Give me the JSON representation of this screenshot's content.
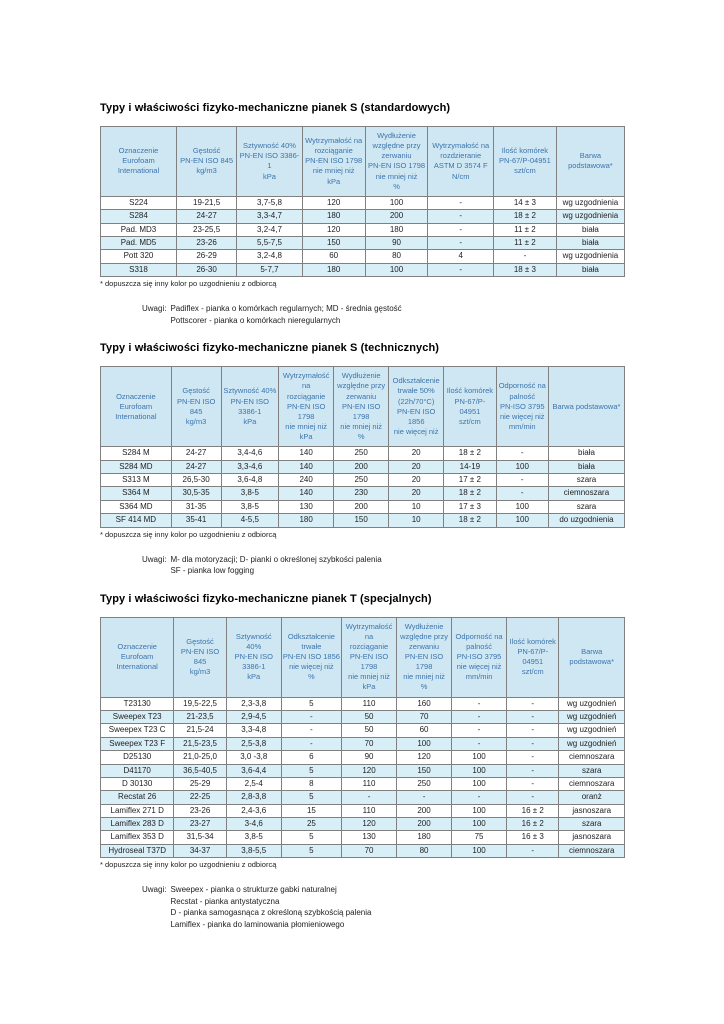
{
  "colors": {
    "header_bg": "#cfe7f2",
    "header_text": "#3c74ad",
    "zebra_bg": "#d9eff8",
    "cell_text": "#222222",
    "border": "#808080"
  },
  "sections": [
    {
      "title": "Typy i właściwości  fizyko-mechaniczne pianek S (standardowych)",
      "table": {
        "headers": [
          "Oznaczenie\nEurofoam\nInternational",
          "Gęstość\nPN-EN ISO 845\nkg/m3",
          "Sztywność 40%\nPN-EN ISO 3386-1\nkPa",
          "Wytrzymałość na\nrozciąganie\nPN-EN ISO 1798\nnie mniej niż\nkPa",
          "Wydłużenie\nwzględne przy\nzerwaniu\nPN-EN ISO 1798\nnie mniej niż\n%",
          "Wytrzymałość na\nrozdzieranie\nASTM D 3574 F\nN/cm",
          "Ilość komórek\nPN-67/P-04951\nszt/cm",
          "Barwa\npodstawowa*"
        ],
        "rows": [
          [
            "S224",
            "19-21,5",
            "3,7-5,8",
            "120",
            "100",
            "-",
            "14 ± 3",
            "wg uzgodnienia"
          ],
          [
            "S284",
            "24-27",
            "3,3-4,7",
            "180",
            "200",
            "-",
            "18 ± 2",
            "wg uzgodnienia"
          ],
          [
            "Pad. MD3",
            "23-25,5",
            "3,2-4,7",
            "120",
            "180",
            "-",
            "11 ± 2",
            "biała"
          ],
          [
            "Pad. MD5",
            "23-26",
            "5,5-7,5",
            "150",
            "90",
            "-",
            "11 ± 2",
            "biała"
          ],
          [
            "Pott 320",
            "26-29",
            "3,2-4,8",
            "60",
            "80",
            "4",
            "-",
            "wg uzgodnienia"
          ],
          [
            "S318",
            "26-30",
            "5-7,7",
            "180",
            "100",
            "-",
            "18 ± 3",
            "biała"
          ]
        ]
      },
      "footnote": "* dopuszcza się inny kolor po uzgodnieniu z odbiorcą",
      "notes_label": "Uwagi:",
      "notes": "Padiflex - pianka o komórkach regularnych; MD - średnia gęstość\nPottscorer - pianka o komórkach nieregularnych"
    },
    {
      "title": "Typy i właściwości fizyko-mechaniczne pianek S (technicznych)",
      "table": {
        "headers": [
          "Oznaczenie\nEurofoam\nInternational",
          "Gęstość\nPN-EN ISO 845\nkg/m3",
          "Sztywność 40%\nPN-EN ISO 3386-1\nkPa",
          "Wytrzymałość na\nrozciąganie\nPN-EN ISO 1798\nnie mniej niż\nkPa",
          "Wydłużenie\nwzględne przy\nzerwaniu\nPN-EN ISO 1798\nnie mniej niż\n%",
          "Odkształcenie\ntrwałe 50%\n(22h/70°C)\nPN-EN ISO 1856\nnie więcej niż",
          "Ilość komórek\nPN-67/P-04951\nszt/cm",
          "Odporność na\npalność\nPN-ISO 3795\nnie więcej niż\nmm/min",
          "Barwa podstawowa*"
        ],
        "rows": [
          [
            "S284 M",
            "24-27",
            "3,4-4,6",
            "140",
            "250",
            "20",
            "18 ± 2",
            "-",
            "biała"
          ],
          [
            "S284 MD",
            "24-27",
            "3,3-4,6",
            "140",
            "200",
            "20",
            "14-19",
            "100",
            "biała"
          ],
          [
            "S313 M",
            "26,5-30",
            "3,6-4,8",
            "240",
            "250",
            "20",
            "17 ± 2",
            "-",
            "szara"
          ],
          [
            "S364 M",
            "30,5-35",
            "3,8-5",
            "140",
            "230",
            "20",
            "18 ± 2",
            "-",
            "ciemnoszara"
          ],
          [
            "S364 MD",
            "31-35",
            "3,8-5",
            "130",
            "200",
            "10",
            "17 ± 3",
            "100",
            "szara"
          ],
          [
            "SF 414 MD",
            "35-41",
            "4-5,5",
            "180",
            "150",
            "10",
            "18 ± 2",
            "100",
            "do uzgodnienia"
          ]
        ]
      },
      "footnote": "* dopuszcza się inny kolor po uzgodnieniu z odbiorcą",
      "notes_label": "Uwagi:",
      "notes": "M- dla motoryzacji; D- pianki o określonej szybkości palenia\nSF - pianka low fogging"
    },
    {
      "title": "Typy i właściwości fizyko-mechaniczne pianek T (specjalnych)",
      "table": {
        "headers": [
          "Oznaczenie\nEurofoam\nInternational",
          "Gęstość\nPN-EN ISO 845\nkg/m3",
          "Sztywność 40%\nPN-EN ISO 3386-1\nkPa",
          "Odkształcenie trwałe\nPN-EN ISO 1856\nnie więcej niż\n%",
          "Wytrzymałość na\nrozciąganie\nPN-EN ISO 1798\nnie mniej niż\nkPa",
          "Wydłużenie\nwzględne przy\nzerwaniu\nPN-EN ISO 1798\nnie mniej niż\n%",
          "Odporność na\npalność\nPN-ISO 3795\nnie więcej niż\nmm/min",
          "Ilość komórek\nPN-67/P-04951\nszt/cm",
          "Barwa podstawowa*"
        ],
        "rows": [
          [
            "T23130",
            "19,5-22,5",
            "2,3-3,8",
            "5",
            "110",
            "160",
            "-",
            "-",
            "wg uzgodnień"
          ],
          [
            "Sweepex T23",
            "21-23,5",
            "2,9-4,5",
            "-",
            "50",
            "70",
            "-",
            "-",
            "wg uzgodnień"
          ],
          [
            "Sweepex T23 C",
            "21,5-24",
            "3,3-4,8",
            "-",
            "50",
            "60",
            "-",
            "-",
            "wg uzgodnień"
          ],
          [
            "Sweepex T23 F",
            "21,5-23,5",
            "2,5-3,8",
            "-",
            "70",
            "100",
            "-",
            "-",
            "wg uzgodnień"
          ],
          [
            "D25130",
            "21,0-25,0",
            "3,0 -3,8",
            "6",
            "90",
            "120",
            "100",
            "-",
            "ciemnoszara"
          ],
          [
            "D41170",
            "36,5-40,5",
            "3,6-4,4",
            "5",
            "120",
            "150",
            "100",
            "-",
            "szara"
          ],
          [
            "D 30130",
            "25-29",
            "2,5-4",
            "8",
            "110",
            "250",
            "100",
            "-",
            "ciemnoszara"
          ],
          [
            "Recstat 26",
            "22-25",
            "2,8-3,8",
            "5",
            "-",
            "-",
            "-",
            "-",
            "oranż"
          ],
          [
            "Lamiflex 271 D",
            "23-26",
            "2,4-3,6",
            "15",
            "110",
            "200",
            "100",
            "16 ± 2",
            "jasnoszara"
          ],
          [
            "Lamiflex 283 D",
            "23-27",
            "3-4,6",
            "25",
            "120",
            "200",
            "100",
            "16 ± 2",
            "szara"
          ],
          [
            "Lamiflex 353 D",
            "31,5-34",
            "3,8-5",
            "5",
            "130",
            "180",
            "75",
            "16 ± 3",
            "jasnoszara"
          ],
          [
            "Hydroseal T37D",
            "34-37",
            "3,8-5,5",
            "5",
            "70",
            "80",
            "100",
            "-",
            "ciemnoszara"
          ]
        ]
      },
      "footnote": "* dopuszcza się inny kolor po uzgodnieniu z odbiorcą",
      "notes_label": "Uwagi:",
      "notes": "Sweepex - pianka o strukturze gabki naturalnej\nRecstat - pianka antystatyczna\nD - pianka samogasnąca z określoną szybkością palenia\nLamiflex - pianka do laminowania płomieniowego"
    }
  ]
}
